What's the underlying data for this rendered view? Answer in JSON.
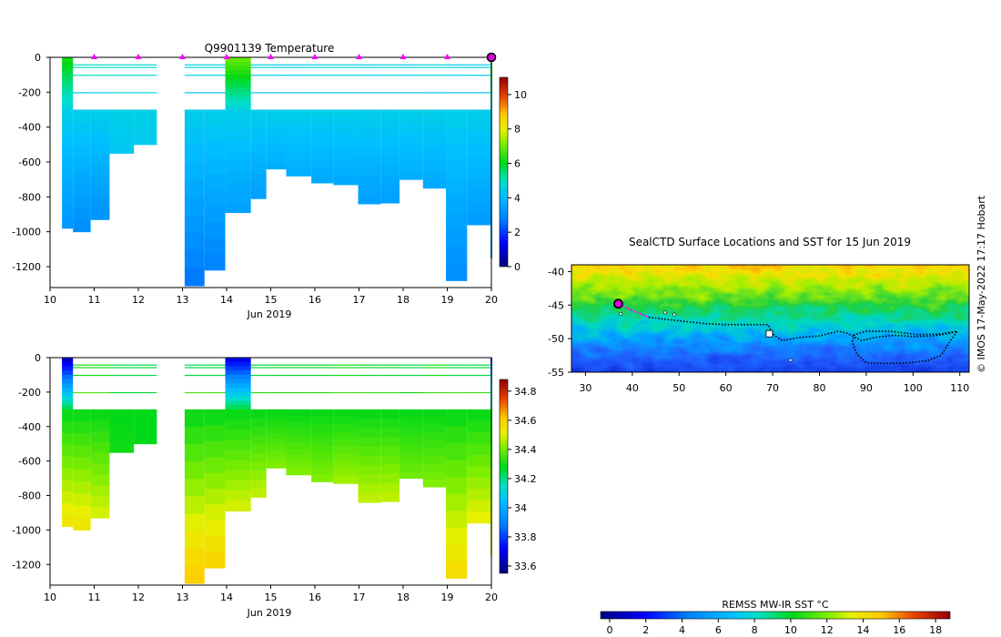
{
  "temperature_panel": {
    "chart_data": {
      "type": "heatmap",
      "title": "Q9901139  Temperature",
      "xlabel": "Jun 2019",
      "ylabel": "",
      "xlim": [
        10,
        20
      ],
      "ylim": [
        -1320,
        0
      ],
      "xticks": [
        "10",
        "11",
        "12",
        "13",
        "14",
        "15",
        "16",
        "17",
        "18",
        "19",
        "20"
      ],
      "yticks": [
        "0",
        "-200",
        "-400",
        "-600",
        "-800",
        "-1000",
        "-1200"
      ],
      "colorbar": {
        "min": 0,
        "max": 11,
        "ticks": [
          "0",
          "2",
          "4",
          "6",
          "8",
          "10"
        ]
      },
      "markers_day": [
        11,
        12,
        13,
        14,
        15,
        16,
        17,
        18,
        19
      ],
      "last_profile_day": 20,
      "profiles": [
        {
          "x0": 10.27,
          "x1": 10.52,
          "bottom": -980,
          "surface": 6.2,
          "deep": 3.2
        },
        {
          "x0": 10.52,
          "x1": 10.92,
          "bottom": -1000,
          "surface": 5.0,
          "deep": 3.0
        },
        {
          "x0": 10.92,
          "x1": 11.35,
          "bottom": -930,
          "surface": 5.0,
          "deep": 3.1
        },
        {
          "x0": 11.35,
          "x1": 11.9,
          "bottom": -550,
          "surface": 4.9,
          "deep": 4.3
        },
        {
          "x0": 11.9,
          "x1": 12.42,
          "bottom": -500,
          "surface": 4.8,
          "deep": 4.4
        },
        {
          "x0": 13.05,
          "x1": 13.5,
          "bottom": -1310,
          "surface": 4.7,
          "deep": 2.6
        },
        {
          "x0": 13.5,
          "x1": 13.97,
          "bottom": -1220,
          "surface": 4.7,
          "deep": 2.8
        },
        {
          "x0": 13.97,
          "x1": 14.55,
          "bottom": -890,
          "surface": 6.9,
          "deep": 3.4
        },
        {
          "x0": 14.55,
          "x1": 14.9,
          "bottom": -810,
          "surface": 4.6,
          "deep": 3.4
        },
        {
          "x0": 14.9,
          "x1": 15.35,
          "bottom": -640,
          "surface": 4.5,
          "deep": 3.7
        },
        {
          "x0": 15.35,
          "x1": 15.92,
          "bottom": -680,
          "surface": 4.5,
          "deep": 3.7
        },
        {
          "x0": 15.92,
          "x1": 16.42,
          "bottom": -720,
          "surface": 4.6,
          "deep": 3.6
        },
        {
          "x0": 16.42,
          "x1": 16.98,
          "bottom": -730,
          "surface": 4.6,
          "deep": 3.6
        },
        {
          "x0": 16.98,
          "x1": 17.5,
          "bottom": -840,
          "surface": 4.5,
          "deep": 3.4
        },
        {
          "x0": 17.5,
          "x1": 17.92,
          "bottom": -835,
          "surface": 4.6,
          "deep": 3.4
        },
        {
          "x0": 17.92,
          "x1": 18.45,
          "bottom": -700,
          "surface": 4.5,
          "deep": 3.7
        },
        {
          "x0": 18.45,
          "x1": 18.97,
          "bottom": -750,
          "surface": 4.7,
          "deep": 3.6
        },
        {
          "x0": 18.97,
          "x1": 19.45,
          "bottom": -1280,
          "surface": 4.5,
          "deep": 3.0
        },
        {
          "x0": 19.45,
          "x1": 19.98,
          "bottom": -960,
          "surface": 4.4,
          "deep": 3.3
        },
        {
          "x0": 19.98,
          "x1": 20.1,
          "bottom": -1150,
          "surface": 6.6,
          "deep": 3.2
        }
      ]
    }
  },
  "salinity_panel": {
    "chart_data": {
      "type": "heatmap",
      "title": "",
      "xlabel": "Jun 2019",
      "ylabel": "",
      "xlim": [
        10,
        20
      ],
      "ylim": [
        -1320,
        0
      ],
      "xticks": [
        "10",
        "11",
        "12",
        "13",
        "14",
        "15",
        "16",
        "17",
        "18",
        "19",
        "20"
      ],
      "yticks": [
        "0",
        "-200",
        "-400",
        "-600",
        "-800",
        "-1000",
        "-1200"
      ],
      "colorbar": {
        "min": 33.55,
        "max": 34.88,
        "ticks": [
          "33.6",
          "33.8",
          "34",
          "34.2",
          "34.4",
          "34.6",
          "34.8"
        ]
      },
      "profiles": [
        {
          "x0": 10.27,
          "x1": 10.52,
          "bottom": -980,
          "surface": 33.65,
          "deep": 34.55
        },
        {
          "x0": 10.52,
          "x1": 10.92,
          "bottom": -1000,
          "surface": 34.3,
          "deep": 34.55
        },
        {
          "x0": 10.92,
          "x1": 11.35,
          "bottom": -930,
          "surface": 34.3,
          "deep": 34.5
        },
        {
          "x0": 11.35,
          "x1": 11.9,
          "bottom": -550,
          "surface": 34.25,
          "deep": 34.3
        },
        {
          "x0": 11.9,
          "x1": 12.42,
          "bottom": -500,
          "surface": 34.25,
          "deep": 34.28
        },
        {
          "x0": 13.05,
          "x1": 13.5,
          "bottom": -1310,
          "surface": 34.25,
          "deep": 34.62
        },
        {
          "x0": 13.5,
          "x1": 13.97,
          "bottom": -1220,
          "surface": 34.25,
          "deep": 34.6
        },
        {
          "x0": 13.97,
          "x1": 14.55,
          "bottom": -890,
          "surface": 33.7,
          "deep": 34.5
        },
        {
          "x0": 14.55,
          "x1": 14.9,
          "bottom": -810,
          "surface": 34.25,
          "deep": 34.48
        },
        {
          "x0": 14.9,
          "x1": 15.35,
          "bottom": -640,
          "surface": 34.27,
          "deep": 34.42
        },
        {
          "x0": 15.35,
          "x1": 15.92,
          "bottom": -680,
          "surface": 34.27,
          "deep": 34.42
        },
        {
          "x0": 15.92,
          "x1": 16.42,
          "bottom": -720,
          "surface": 34.27,
          "deep": 34.42
        },
        {
          "x0": 16.42,
          "x1": 16.98,
          "bottom": -730,
          "surface": 34.3,
          "deep": 34.45
        },
        {
          "x0": 16.98,
          "x1": 17.5,
          "bottom": -840,
          "surface": 34.27,
          "deep": 34.48
        },
        {
          "x0": 17.5,
          "x1": 17.92,
          "bottom": -835,
          "surface": 34.27,
          "deep": 34.48
        },
        {
          "x0": 17.92,
          "x1": 18.45,
          "bottom": -700,
          "surface": 34.25,
          "deep": 34.4
        },
        {
          "x0": 18.45,
          "x1": 18.97,
          "bottom": -750,
          "surface": 34.3,
          "deep": 34.42
        },
        {
          "x0": 18.97,
          "x1": 19.45,
          "bottom": -1280,
          "surface": 34.25,
          "deep": 34.58
        },
        {
          "x0": 19.45,
          "x1": 19.98,
          "bottom": -960,
          "surface": 34.25,
          "deep": 34.52
        },
        {
          "x0": 19.98,
          "x1": 20.1,
          "bottom": -1150,
          "surface": 33.8,
          "deep": 34.5
        }
      ]
    }
  },
  "map_panel": {
    "title": "SealCTD Surface Locations and SST for 15 Jun 2019",
    "credit": "© IMOS 17-May-2022 17:17 Hobart",
    "chart_data": {
      "type": "heatmap",
      "title": "SealCTD Surface Locations and SST for 15 Jun 2019",
      "xlim": [
        27,
        112
      ],
      "ylim": [
        -55,
        -39
      ],
      "xticks": [
        "30",
        "40",
        "50",
        "60",
        "70",
        "80",
        "90",
        "100",
        "110"
      ],
      "yticks": [
        "-40",
        "-45",
        "-50",
        "-55"
      ],
      "track": [
        [
          43.5,
          -46.8
        ],
        [
          48,
          -47.2
        ],
        [
          52,
          -47.5
        ],
        [
          56,
          -47.8
        ],
        [
          60,
          -47.9
        ],
        [
          65,
          -47.9
        ],
        [
          69,
          -47.9
        ],
        [
          70,
          -49.3
        ],
        [
          72,
          -50.3
        ],
        [
          76,
          -49.8
        ],
        [
          80,
          -49.6
        ],
        [
          84,
          -48.9
        ],
        [
          86,
          -49.2
        ],
        [
          89,
          -50.3
        ],
        [
          92,
          -49.8
        ],
        [
          96,
          -49.5
        ],
        [
          100,
          -49.7
        ],
        [
          104,
          -49.6
        ],
        [
          107,
          -49.3
        ],
        [
          109.5,
          -48.9
        ],
        [
          108,
          -50.3
        ],
        [
          106,
          -52.5
        ],
        [
          103,
          -53.3
        ],
        [
          99,
          -53.6
        ],
        [
          94,
          -53.7
        ],
        [
          90,
          -53.6
        ],
        [
          88,
          -52.3
        ],
        [
          87,
          -50.5
        ],
        [
          87.5,
          -49.4
        ],
        [
          90,
          -48.9
        ],
        [
          95,
          -48.9
        ],
        [
          101,
          -49.4
        ],
        [
          106,
          -49.3
        ],
        [
          109.5,
          -48.9
        ]
      ],
      "magenta_segment": [
        [
          37.2,
          -44.9
        ],
        [
          40,
          -45.8
        ],
        [
          43.5,
          -46.8
        ]
      ],
      "current_position": [
        37,
        -44.8
      ],
      "scattered_points": [
        [
          37.5,
          -46.3
        ],
        [
          47,
          -46.1
        ],
        [
          49,
          -46.4
        ],
        [
          69.5,
          -49.2
        ],
        [
          73.8,
          -53.2
        ]
      ]
    }
  },
  "sst_colorbar": {
    "label": "REMSS MW-IR SST °C",
    "chart_data": {
      "type": "heatmap",
      "min": -0.5,
      "max": 18.8,
      "ticks": [
        "0",
        "2",
        "4",
        "6",
        "8",
        "10",
        "12",
        "14",
        "16",
        "18"
      ]
    }
  }
}
